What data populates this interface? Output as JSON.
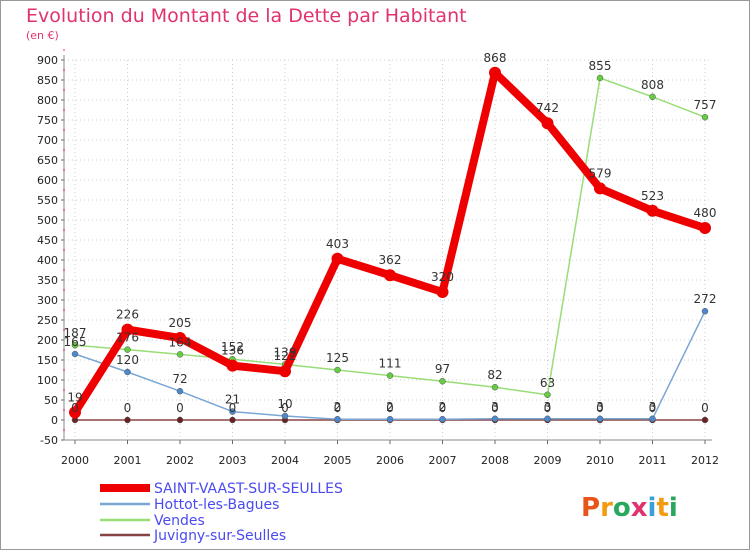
{
  "chart_data": {
    "type": "line",
    "title": "Evolution du Montant de la Dette par Habitant",
    "subtitle": "(en €)",
    "xlabel": "",
    "ylabel": "",
    "x": [
      "2000",
      "2001",
      "2002",
      "2003",
      "2004",
      "2005",
      "2006",
      "2007",
      "2008",
      "2009",
      "2010",
      "2011",
      "2012"
    ],
    "ylim": [
      -50,
      900
    ],
    "yticks": [
      -50,
      0,
      50,
      100,
      150,
      200,
      250,
      300,
      350,
      400,
      450,
      500,
      550,
      600,
      650,
      700,
      750,
      800,
      850,
      900
    ],
    "grid": true,
    "legend_position": "bottom-left",
    "series": [
      {
        "name": "SAINT-VAAST-SUR-SEULLES",
        "color": "#ee0000",
        "values": [
          19,
          226,
          205,
          136,
          122,
          403,
          362,
          320,
          868,
          742,
          579,
          523,
          480
        ],
        "labels": [
          "19",
          "226",
          "205",
          "136",
          "122",
          "403",
          "362",
          "320",
          "868",
          "742",
          "579",
          "523",
          "480"
        ]
      },
      {
        "name": "Hottot-les-Bagues",
        "color": "#6a9ccc",
        "values": [
          165,
          120,
          72,
          21,
          10,
          2,
          2,
          2,
          3,
          3,
          3,
          3,
          272
        ],
        "labels": [
          "165",
          "120",
          "72",
          "21",
          "10",
          "2",
          "2",
          "2",
          "3",
          "3",
          "3",
          "3",
          "272"
        ]
      },
      {
        "name": "Vendes",
        "color": "#88dd66",
        "values": [
          187,
          176,
          164,
          152,
          139,
          125,
          111,
          97,
          82,
          63,
          855,
          808,
          757
        ],
        "labels": [
          "187",
          "176",
          "164",
          "152",
          "139",
          "125",
          "111",
          "97",
          "82",
          "63",
          "855",
          "808",
          "757"
        ]
      },
      {
        "name": "Juvigny-sur-Seulles",
        "color": "#884444",
        "values": [
          0,
          0,
          0,
          0,
          0,
          0,
          0,
          0,
          0,
          0,
          0,
          0,
          0
        ],
        "labels": [
          "0",
          "0",
          "0",
          "0",
          "0",
          "0",
          "0",
          "0",
          "0",
          "0",
          "0",
          "0",
          "0"
        ]
      }
    ]
  },
  "logo": {
    "text": "Proxiti"
  },
  "colors": {
    "accent": "#e0336e",
    "legend_text": "#4a4af0",
    "border": "#999999"
  }
}
